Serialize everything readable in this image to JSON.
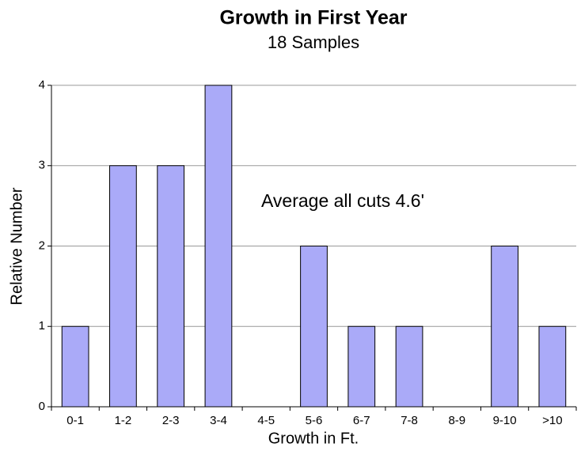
{
  "chart_data": {
    "type": "bar",
    "title": "Growth in First Year",
    "subtitle": "18 Samples",
    "x_label": "Growth in Ft.",
    "y_label": "Relative Number",
    "annotation": "Average all cuts 4.6'",
    "categories": [
      "0-1",
      "1-2",
      "2-3",
      "3-4",
      "4-5",
      "5-6",
      "6-7",
      "7-8",
      "8-9",
      "9-10",
      ">10"
    ],
    "values": [
      1,
      3,
      3,
      4,
      0,
      2,
      1,
      1,
      0,
      2,
      1
    ],
    "color": "#aaaaf8",
    "ylim": [
      0,
      4
    ],
    "yticks": [
      0,
      1,
      2,
      3,
      4
    ],
    "grid": true
  }
}
